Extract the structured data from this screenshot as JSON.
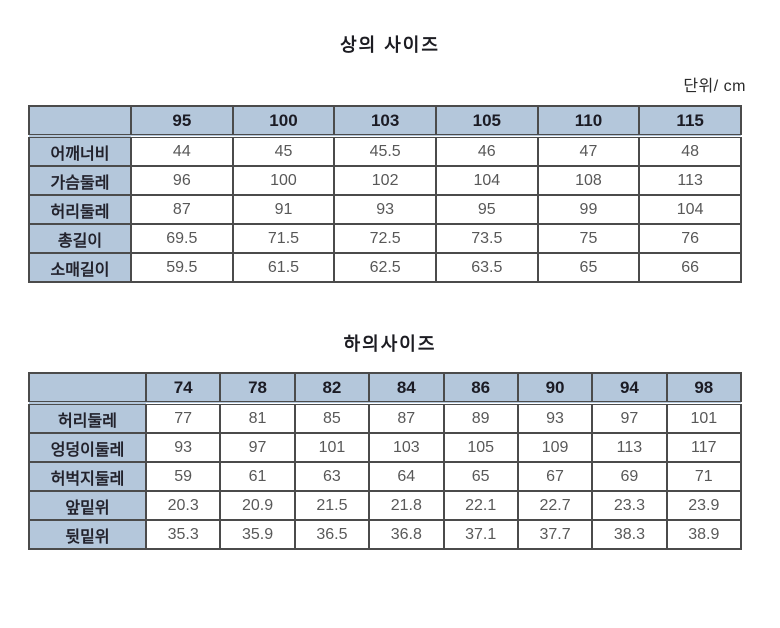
{
  "page": {
    "unit_label": "단위/ cm"
  },
  "colors": {
    "header_bg": "#b4c7db",
    "border": "#4b4b4b",
    "header_text": "#1b1b24",
    "body_text": "#585858"
  },
  "tables": [
    {
      "title": "상의 사이즈",
      "columns": [
        "95",
        "100",
        "103",
        "105",
        "110",
        "115"
      ],
      "rows": [
        {
          "label": "어깨너비",
          "values": [
            "44",
            "45",
            "45.5",
            "46",
            "47",
            "48"
          ]
        },
        {
          "label": "가슴둘레",
          "values": [
            "96",
            "100",
            "102",
            "104",
            "108",
            "113"
          ]
        },
        {
          "label": "허리둘레",
          "values": [
            "87",
            "91",
            "93",
            "95",
            "99",
            "104"
          ]
        },
        {
          "label": "총길이",
          "values": [
            "69.5",
            "71.5",
            "72.5",
            "73.5",
            "75",
            "76"
          ]
        },
        {
          "label": "소매길이",
          "values": [
            "59.5",
            "61.5",
            "62.5",
            "63.5",
            "65",
            "66"
          ]
        }
      ]
    },
    {
      "title": "하의사이즈",
      "columns": [
        "74",
        "78",
        "82",
        "84",
        "86",
        "90",
        "94",
        "98"
      ],
      "rows": [
        {
          "label": "허리둘레",
          "values": [
            "77",
            "81",
            "85",
            "87",
            "89",
            "93",
            "97",
            "101"
          ]
        },
        {
          "label": "엉덩이둘레",
          "values": [
            "93",
            "97",
            "101",
            "103",
            "105",
            "109",
            "113",
            "117"
          ]
        },
        {
          "label": "허벅지둘레",
          "values": [
            "59",
            "61",
            "63",
            "64",
            "65",
            "67",
            "69",
            "71"
          ]
        },
        {
          "label": "앞밑위",
          "values": [
            "20.3",
            "20.9",
            "21.5",
            "21.8",
            "22.1",
            "22.7",
            "23.3",
            "23.9"
          ]
        },
        {
          "label": "뒷밑위",
          "values": [
            "35.3",
            "35.9",
            "36.5",
            "36.8",
            "37.1",
            "37.7",
            "38.3",
            "38.9"
          ]
        }
      ]
    }
  ]
}
